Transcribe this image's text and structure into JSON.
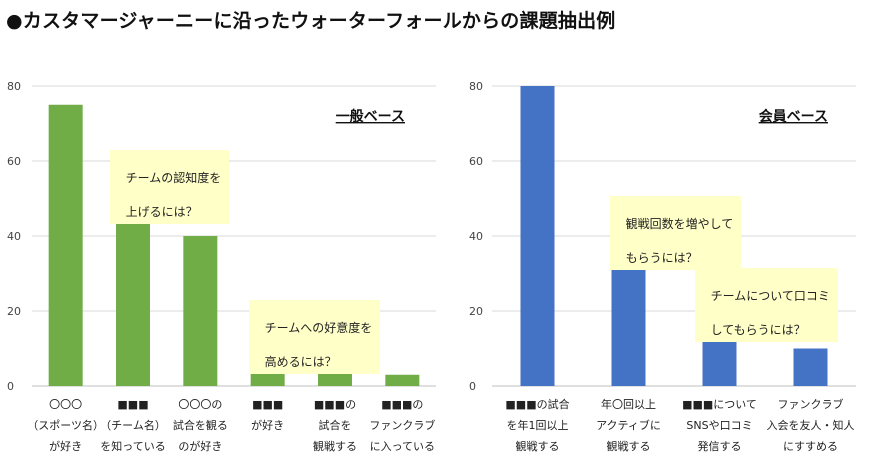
{
  "title": "●カスタマージャーニーに沿ったウォーターフォールからの課題抽出例",
  "chart_data": [
    {
      "type": "bar",
      "panel_label": "一般ベース",
      "ylim": [
        0,
        80
      ],
      "yticks": [
        0,
        20,
        40,
        60,
        80
      ],
      "grid": true,
      "color": "#70ad47",
      "categories": [
        [
          "〇〇〇",
          "（スポーツ名）",
          "が好き"
        ],
        [
          "■■■",
          "（チーム名）",
          "を知っている"
        ],
        [
          "〇〇〇の",
          "試合を観る",
          "のが好き"
        ],
        [
          "■■■",
          "が好き"
        ],
        [
          "■■■の",
          "試合を",
          "観戦する"
        ],
        [
          "■■■の",
          "ファンクラブ",
          "に入っている"
        ]
      ],
      "values": [
        75,
        50,
        40,
        10,
        5,
        3
      ],
      "annotations": [
        [
          "チームの認知度を",
          "上げるには？"
        ],
        [
          "チームへの好意度を",
          "高めるには？"
        ]
      ]
    },
    {
      "type": "bar",
      "panel_label": "会員ベース",
      "ylim": [
        0,
        80
      ],
      "yticks": [
        0,
        20,
        40,
        60,
        80
      ],
      "grid": true,
      "color": "#4472c4",
      "categories": [
        [
          "■■■の試合",
          "を年1回以上",
          "観戦する"
        ],
        [
          "年〇回以上",
          "アクティブに",
          "観戦する"
        ],
        [
          "■■■について",
          "SNSや口コミ",
          "発信する"
        ],
        [
          "ファンクラブ",
          "入会を友人・知人",
          "にすすめる"
        ]
      ],
      "values": [
        80,
        35,
        18,
        10
      ],
      "annotations": [
        [
          "観戦回数を増やして",
          "もらうには？"
        ],
        [
          "チームについて口コミ",
          "してもらうには？"
        ]
      ]
    }
  ]
}
